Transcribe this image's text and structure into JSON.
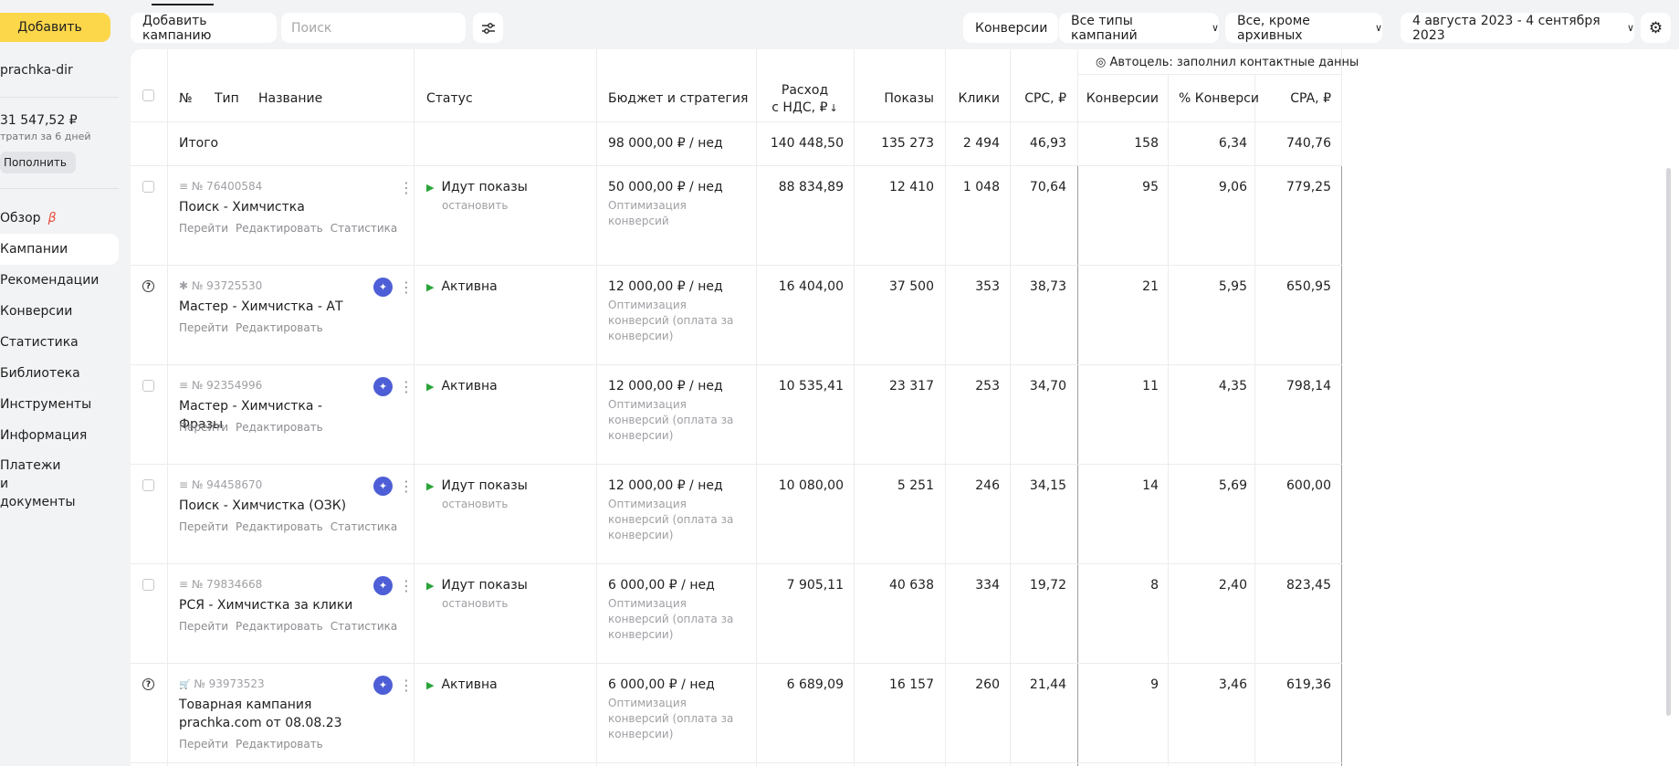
{
  "sidebar": {
    "add_button": "Добавить",
    "login": "prachka-dir",
    "balance": "31 547,52 ₽",
    "spent_note": "тратил за 6 дней",
    "topup_button": "Пополнить",
    "nav": [
      {
        "label": "Обзор",
        "beta": "β"
      },
      {
        "label": "Кампании"
      },
      {
        "label": "Рекомендации"
      },
      {
        "label": "Конверсии"
      },
      {
        "label": "Статистика"
      },
      {
        "label": "Библиотека"
      },
      {
        "label": "Инструменты"
      },
      {
        "label": "Информация"
      },
      {
        "label": "Платежи и документы"
      }
    ]
  },
  "toolbar": {
    "add_campaign": "Добавить кампанию",
    "search_placeholder": "Поиск",
    "conversions": "Конверсии",
    "campaign_types": "Все типы кампаний",
    "archive_filter": "Все, кроме архивных",
    "date_range": "4 августа 2023 - 4 сентября 2023"
  },
  "table": {
    "goal_header": "◎ Автоцель: заполнил контактные данны",
    "headers": {
      "num": "№",
      "type": "Тип",
      "name": "Название",
      "status": "Статус",
      "budget": "Бюджет и стратегия",
      "spend_line1": "Расход",
      "spend_line2": "с НДС, ₽",
      "sort_arrow": "↓",
      "impressions": "Показы",
      "clicks": "Клики",
      "cpc": "CPC, ₽",
      "conversions": "Конверсии",
      "conv_rate": "% Конверси",
      "cpa": "CPA, ₽"
    },
    "total": {
      "label": "Итого",
      "budget": "98 000,00 ₽ / нед",
      "spend": "140 448,50",
      "impressions": "135 273",
      "clicks": "2 494",
      "cpc": "46,93",
      "conversions": "158",
      "conv_rate": "6,34",
      "cpa": "740,76"
    },
    "rows": [
      {
        "type_icon": "≡",
        "id": "№ 76400584",
        "name": "Поиск - Химчистка",
        "links": [
          "Перейти",
          "Редактировать",
          "Статистика"
        ],
        "status": "Идут показы",
        "status_action": "остановить",
        "budget": "50 000,00 ₽ / нед",
        "strategy": "Оптимизация конверсий",
        "spend": "88 834,89",
        "impressions": "12 410",
        "clicks": "1 048",
        "cpc": "70,64",
        "conversions": "95",
        "conv_rate": "9,06",
        "cpa": "779,25"
      },
      {
        "type_icon": "✱",
        "id": "№ 93725530",
        "name": "Мастер - Химчистка - АТ",
        "links": [
          "Перейти",
          "Редактировать"
        ],
        "status": "Активна",
        "status_action": "",
        "budget": "12 000,00 ₽ / нед",
        "strategy": "Оптимизация конверсий (оплата за конверсии)",
        "spend": "16 404,00",
        "impressions": "37 500",
        "clicks": "353",
        "cpc": "38,73",
        "conversions": "21",
        "conv_rate": "5,95",
        "cpa": "650,95"
      },
      {
        "type_icon": "≡",
        "id": "№ 92354996",
        "name": "Мастер - Химчистка - Фразы",
        "links": [
          "Перейти",
          "Редактировать"
        ],
        "status": "Активна",
        "status_action": "",
        "budget": "12 000,00 ₽ / нед",
        "strategy": "Оптимизация конверсий (оплата за конверсии)",
        "spend": "10 535,41",
        "impressions": "23 317",
        "clicks": "253",
        "cpc": "34,70",
        "conversions": "11",
        "conv_rate": "4,35",
        "cpa": "798,14"
      },
      {
        "type_icon": "≡",
        "id": "№ 94458670",
        "name": "Поиск - Химчистка (ОЗК)",
        "links": [
          "Перейти",
          "Редактировать",
          "Статистика"
        ],
        "status": "Идут показы",
        "status_action": "остановить",
        "budget": "12 000,00 ₽ / нед",
        "strategy": "Оптимизация конверсий (оплата за конверсии)",
        "spend": "10 080,00",
        "impressions": "5 251",
        "clicks": "246",
        "cpc": "34,15",
        "conversions": "14",
        "conv_rate": "5,69",
        "cpa": "600,00"
      },
      {
        "type_icon": "≡",
        "id": "№ 79834668",
        "name": "РСЯ - Химчистка за клики",
        "links": [
          "Перейти",
          "Редактировать",
          "Статистика"
        ],
        "status": "Идут показы",
        "status_action": "остановить",
        "budget": "6 000,00 ₽ / нед",
        "strategy": "Оптимизация конверсий (оплата за конверсии)",
        "spend": "7 905,11",
        "impressions": "40 638",
        "clicks": "334",
        "cpc": "19,72",
        "conversions": "8",
        "conv_rate": "2,40",
        "cpa": "823,45"
      },
      {
        "type_icon": "🛒",
        "id": "№ 93973523",
        "name": "Товарная кампания prachka.com от 08.08.23",
        "links": [
          "Перейти",
          "Редактировать"
        ],
        "status": "Активна",
        "status_action": "",
        "budget": "6 000,00 ₽ / нед",
        "strategy": "Оптимизация конверсий (оплата за конверсии)",
        "spend": "6 689,09",
        "impressions": "16 157",
        "clicks": "260",
        "cpc": "21,44",
        "conversions": "9",
        "conv_rate": "3,46",
        "cpa": "619,36"
      }
    ]
  }
}
